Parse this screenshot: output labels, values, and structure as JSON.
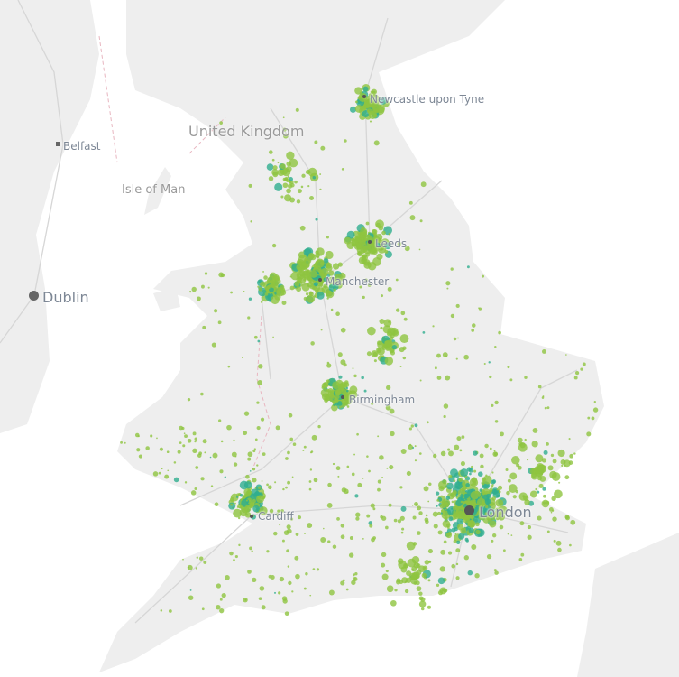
{
  "map": {
    "country_labels": {
      "uk": "United Kingdom",
      "iom": "Isle of Man"
    },
    "cities": [
      {
        "name": "Newcastle upon Tyne",
        "size": "small"
      },
      {
        "name": "Belfast",
        "size": "small"
      },
      {
        "name": "Leeds",
        "size": "small"
      },
      {
        "name": "Manchester",
        "size": "small"
      },
      {
        "name": "Dublin",
        "size": "large"
      },
      {
        "name": "Birmingham",
        "size": "small"
      },
      {
        "name": "Cardiff",
        "size": "small"
      },
      {
        "name": "London",
        "size": "large"
      }
    ],
    "colors": {
      "land": "#eeeeee",
      "water": "#ffffff",
      "roads": "#d6d6d6",
      "border": "#e8b6c0",
      "point_low": "#8fc440",
      "point_high": "#2fae8e",
      "city_marker": "#555555"
    }
  }
}
